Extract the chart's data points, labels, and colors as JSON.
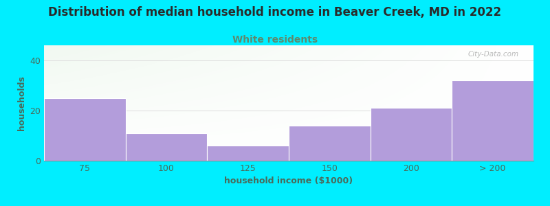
{
  "title": "Distribution of median household income in Beaver Creek, MD in 2022",
  "subtitle": "White residents",
  "xlabel": "household income ($1000)",
  "ylabel": "households",
  "categories": [
    "75",
    "100",
    "125",
    "150",
    "200",
    "> 200"
  ],
  "values": [
    25,
    11,
    6,
    14,
    21,
    32
  ],
  "bar_color": "#b39ddb",
  "bar_edgecolor": "#ffffff",
  "background_color": "#00eeff",
  "plot_bg_green": "#e8f5e9",
  "plot_bg_white": "#f8f8f8",
  "title_color": "#2a2a2a",
  "subtitle_color": "#5d8a6e",
  "axis_label_color": "#4a6a5a",
  "tick_color": "#4a6a5a",
  "ylim": [
    0,
    46
  ],
  "yticks": [
    0,
    20,
    40
  ],
  "watermark": "City-Data.com",
  "title_fontsize": 12,
  "subtitle_fontsize": 10,
  "label_fontsize": 9,
  "tick_fontsize": 9
}
